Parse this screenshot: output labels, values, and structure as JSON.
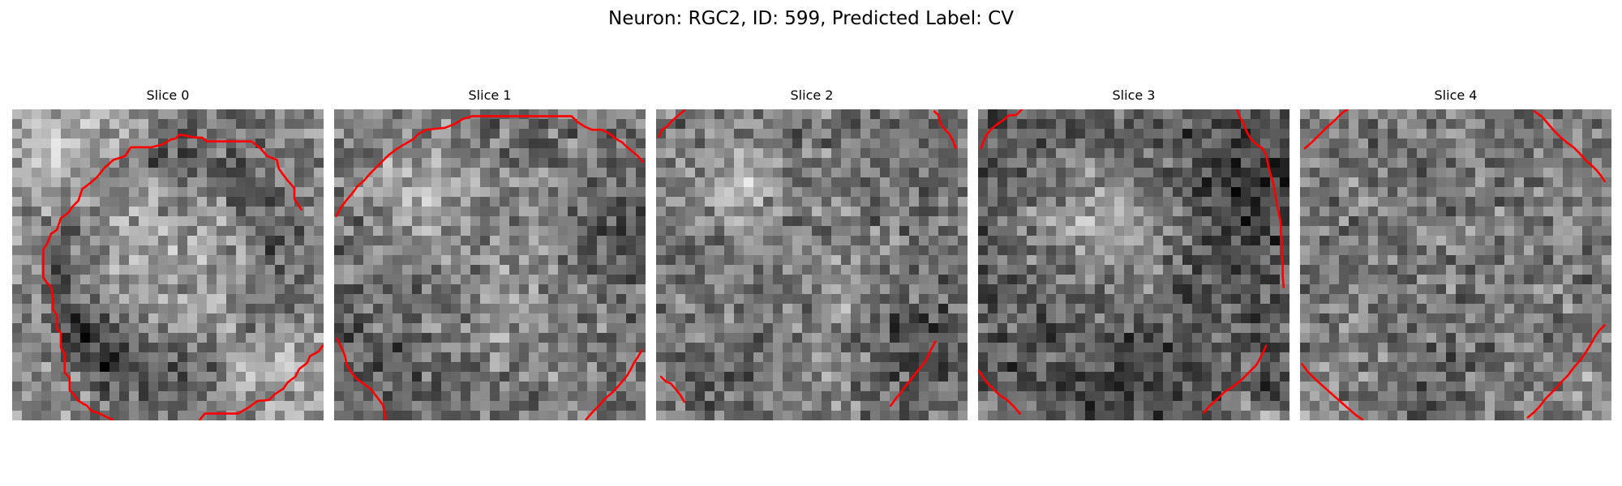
{
  "figure": {
    "title": "Neuron: RGC2, ID: 599, Predicted Label: CV"
  },
  "contour_color": "#ff0000",
  "panels": [
    {
      "title": "Slice 0",
      "brightness": "medium-bright",
      "contour": "near-complete boundary enclosing the cell"
    },
    {
      "title": "Slice 1",
      "brightness": "medium",
      "contour": "boundary arc along top and corners"
    },
    {
      "title": "Slice 2",
      "brightness": "medium",
      "contour": "corner fragments only"
    },
    {
      "title": "Slice 3",
      "brightness": "dark",
      "contour": "corner and right-edge fragments"
    },
    {
      "title": "Slice 4",
      "brightness": "medium",
      "contour": "corner fragments only"
    }
  ]
}
